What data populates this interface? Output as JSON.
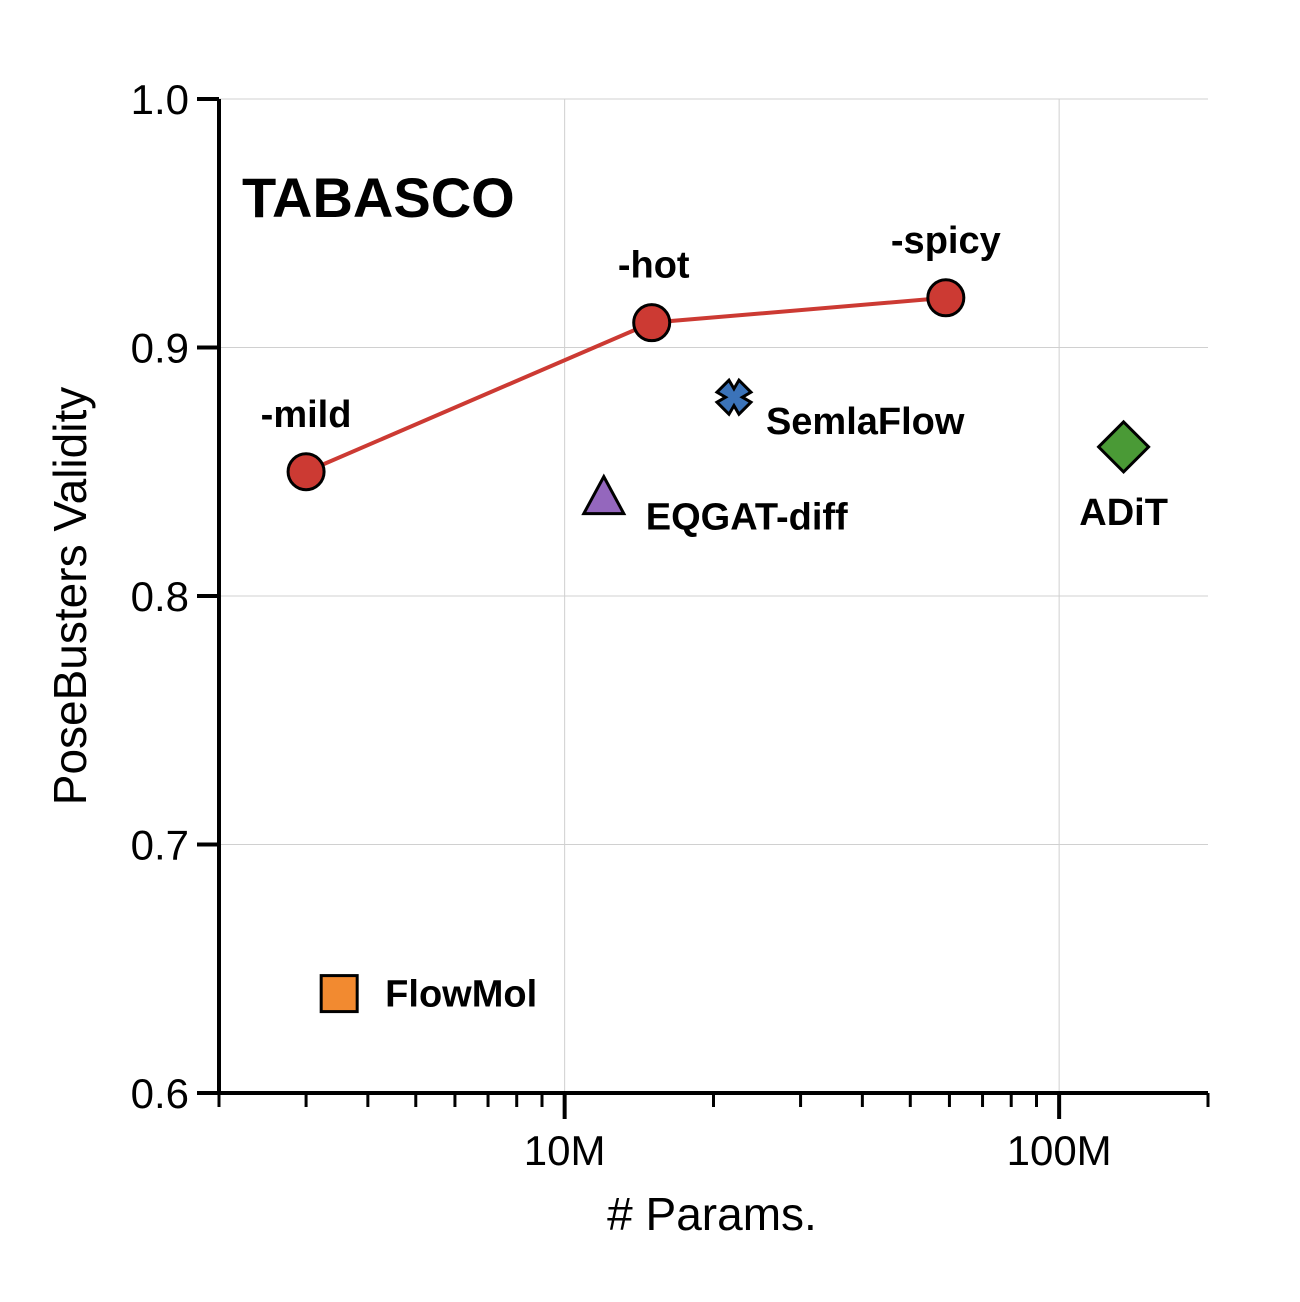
{
  "chart_data": {
    "type": "scatter",
    "xscale": "log",
    "xlim": [
      2000000,
      200000000
    ],
    "ylim": [
      0.6,
      1.0
    ],
    "xlabel": "# Params.",
    "ylabel": "PoseBusters Validity",
    "grid": true,
    "yticks": [
      "0.6",
      "0.7",
      "0.8",
      "0.9",
      "1.0"
    ],
    "xtick_labels": [
      {
        "value": 10000000,
        "label": "10M"
      },
      {
        "value": 100000000,
        "label": "100M"
      }
    ],
    "group_label": "TABASCO",
    "series": [
      {
        "color": "#cc3a33",
        "marker": "circle",
        "line": true,
        "points": [
          {
            "x": 3000000,
            "y": 0.85,
            "label": "-mild"
          },
          {
            "x": 15000000,
            "y": 0.91,
            "label": "-hot"
          },
          {
            "x": 59000000,
            "y": 0.92,
            "label": "-spicy"
          }
        ]
      },
      {
        "color": "#3b73b9",
        "marker": "x",
        "line": false,
        "points": [
          {
            "x": 22000000,
            "y": 0.88,
            "label": "SemlaFlow"
          }
        ]
      },
      {
        "color": "#9467bd",
        "marker": "triangle",
        "line": false,
        "points": [
          {
            "x": 12000000,
            "y": 0.84,
            "label": "EQGAT-diff"
          }
        ]
      },
      {
        "color": "#4a9a36",
        "marker": "diamond",
        "line": false,
        "points": [
          {
            "x": 135000000,
            "y": 0.86,
            "label": "ADiT"
          }
        ]
      },
      {
        "color": "#f28a30",
        "marker": "square",
        "line": false,
        "points": [
          {
            "x": 3500000,
            "y": 0.64,
            "label": "FlowMol"
          }
        ]
      }
    ]
  }
}
